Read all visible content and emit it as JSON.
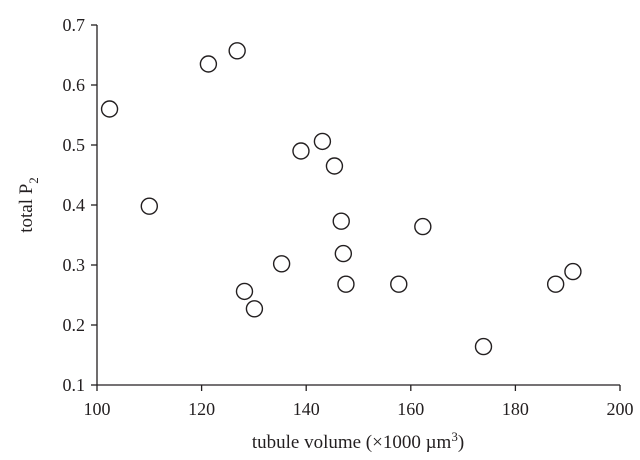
{
  "chart_data": {
    "type": "scatter",
    "xlabel": "tubule volume (×1000 µm³)",
    "ylabel": "total P₂",
    "xlim": [
      100,
      200
    ],
    "ylim": [
      0.1,
      0.7
    ],
    "x_ticks": [
      "100",
      "120",
      "140",
      "160",
      "180",
      "200"
    ],
    "y_ticks": [
      "0.1",
      "0.2",
      "0.3",
      "0.4",
      "0.5",
      "0.6",
      "0.7"
    ],
    "grid": false,
    "marker": "open-circle",
    "points": [
      {
        "x": 102.4,
        "y": 0.56
      },
      {
        "x": 110.0,
        "y": 0.398
      },
      {
        "x": 121.3,
        "y": 0.635
      },
      {
        "x": 126.8,
        "y": 0.657
      },
      {
        "x": 128.2,
        "y": 0.256
      },
      {
        "x": 130.1,
        "y": 0.227
      },
      {
        "x": 135.3,
        "y": 0.302
      },
      {
        "x": 139.0,
        "y": 0.49
      },
      {
        "x": 143.1,
        "y": 0.506
      },
      {
        "x": 145.4,
        "y": 0.465
      },
      {
        "x": 146.7,
        "y": 0.373
      },
      {
        "x": 147.1,
        "y": 0.319
      },
      {
        "x": 147.6,
        "y": 0.268
      },
      {
        "x": 157.7,
        "y": 0.268
      },
      {
        "x": 162.3,
        "y": 0.364
      },
      {
        "x": 173.9,
        "y": 0.164
      },
      {
        "x": 187.7,
        "y": 0.268
      },
      {
        "x": 191.0,
        "y": 0.289
      }
    ]
  }
}
